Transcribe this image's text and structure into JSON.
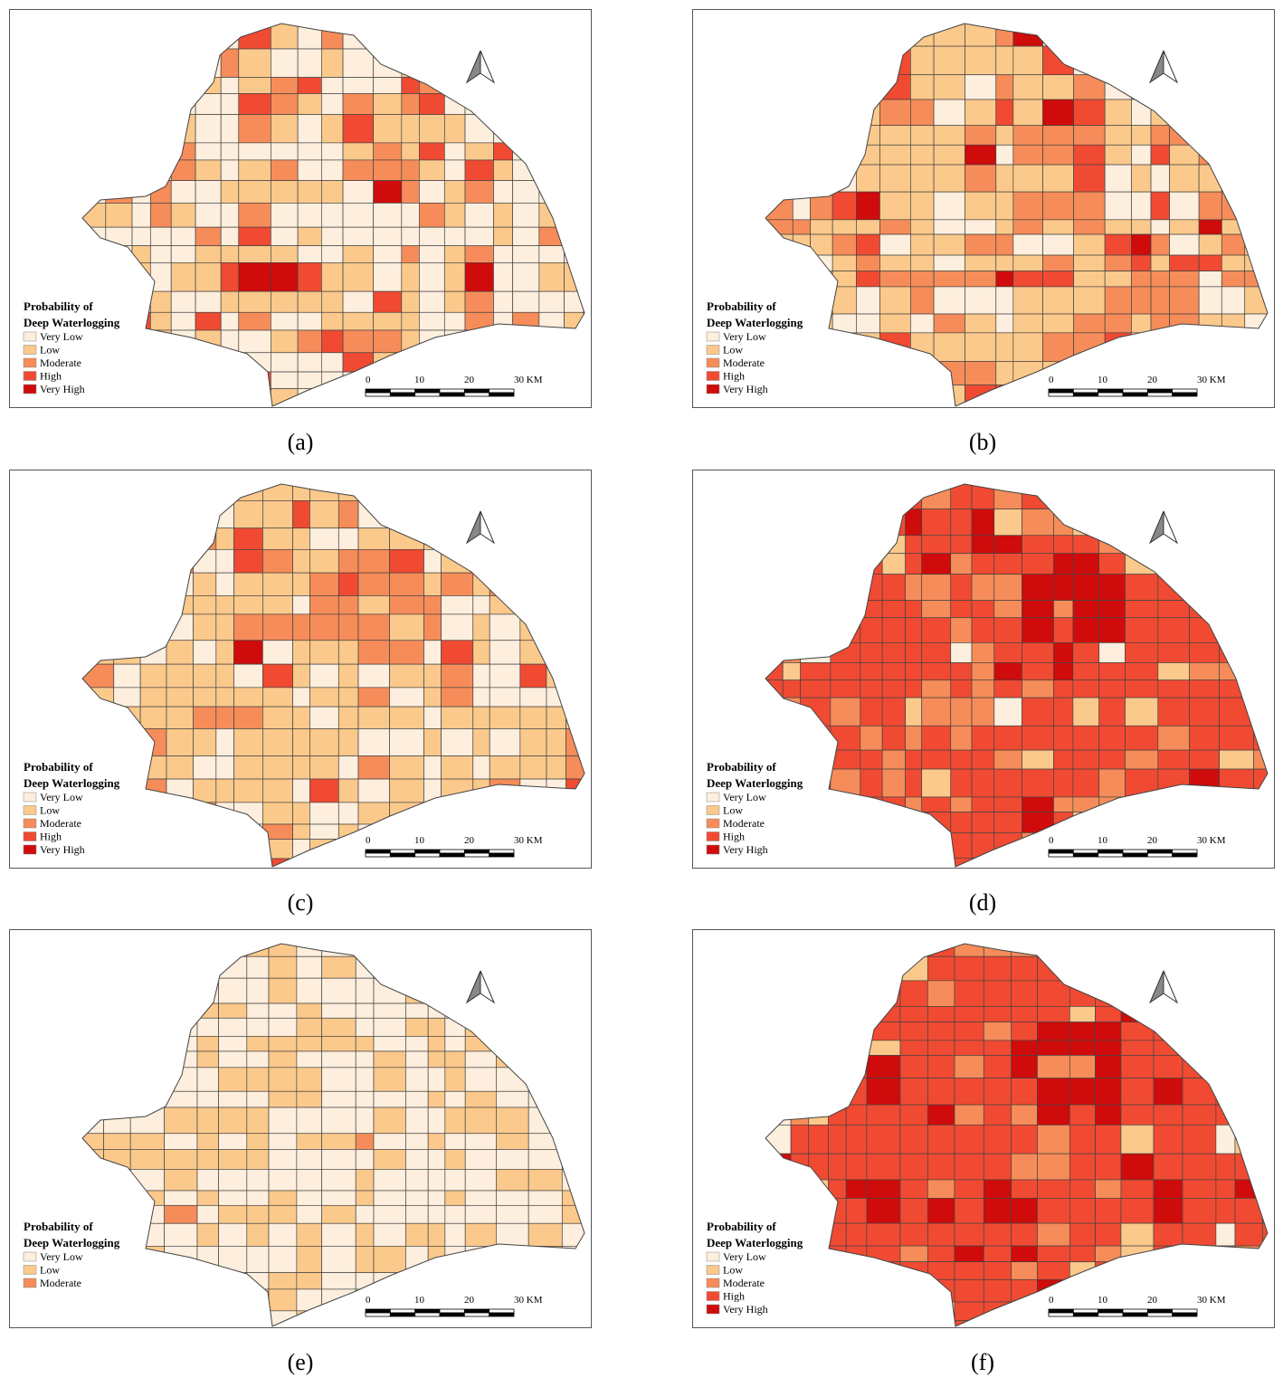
{
  "panels": [
    {
      "caption": "(a)",
      "legend": {
        "title": [
          "Probability of",
          "Deep Waterlogging"
        ],
        "items": [
          {
            "label": "Very Low",
            "color": "#fdeedd"
          },
          {
            "label": "Low",
            "color": "#fbc98b"
          },
          {
            "label": "Moderate",
            "color": "#f68c59"
          },
          {
            "label": "High",
            "color": "#f04a32"
          },
          {
            "label": "Very High",
            "color": "#cf0b0b"
          }
        ]
      },
      "scale": [
        "0",
        "10",
        "20",
        "30 KM"
      ]
    },
    {
      "caption": "(b)",
      "legend": {
        "title": [
          "Probability of",
          "Deep Waterlogging"
        ],
        "items": [
          {
            "label": "Very Low",
            "color": "#fdeedd"
          },
          {
            "label": "Low",
            "color": "#fbc98b"
          },
          {
            "label": "Moderate",
            "color": "#f68c59"
          },
          {
            "label": "High",
            "color": "#f04a32"
          },
          {
            "label": "Very High",
            "color": "#cf0b0b"
          }
        ]
      },
      "scale": [
        "0",
        "10",
        "20",
        "30 KM"
      ]
    },
    {
      "caption": "(c)",
      "legend": {
        "title": [
          "Probability of",
          "Deep Waterlogging"
        ],
        "items": [
          {
            "label": "Very Low",
            "color": "#fdeedd"
          },
          {
            "label": "Low",
            "color": "#fbc98b"
          },
          {
            "label": "Moderate",
            "color": "#f68c59"
          },
          {
            "label": "High",
            "color": "#f04a32"
          },
          {
            "label": "Very High",
            "color": "#cf0b0b"
          }
        ]
      },
      "scale": [
        "0",
        "10",
        "20",
        "30 KM"
      ]
    },
    {
      "caption": "(d)",
      "legend": {
        "title": [
          "Probability of",
          "Deep Waterlogging"
        ],
        "items": [
          {
            "label": "Very Low",
            "color": "#fdeedd"
          },
          {
            "label": "Low",
            "color": "#fbc98b"
          },
          {
            "label": "Moderate",
            "color": "#f68c59"
          },
          {
            "label": "High",
            "color": "#f04a32"
          },
          {
            "label": "Very High",
            "color": "#cf0b0b"
          }
        ]
      },
      "scale": [
        "0",
        "10",
        "20",
        "30 KM"
      ]
    },
    {
      "caption": "(e)",
      "legend": {
        "title": [
          "Probability of",
          "Deep Waterlogging"
        ],
        "items": [
          {
            "label": "Very Low",
            "color": "#fdeedd"
          },
          {
            "label": "Low",
            "color": "#fbc98b"
          },
          {
            "label": "Moderate",
            "color": "#f68c59"
          }
        ]
      },
      "scale": [
        "0",
        "10",
        "20",
        "30 KM"
      ]
    },
    {
      "caption": "(f)",
      "legend": {
        "title": [
          "Probability of",
          "Deep Waterlogging"
        ],
        "items": [
          {
            "label": "Very Low",
            "color": "#fdeedd"
          },
          {
            "label": "Low",
            "color": "#fbc98b"
          },
          {
            "label": "Moderate",
            "color": "#f68c59"
          },
          {
            "label": "High",
            "color": "#f04a32"
          },
          {
            "label": "Very High",
            "color": "#cf0b0b"
          }
        ]
      },
      "scale": [
        "0",
        "10",
        "20",
        "30 KM"
      ]
    }
  ]
}
